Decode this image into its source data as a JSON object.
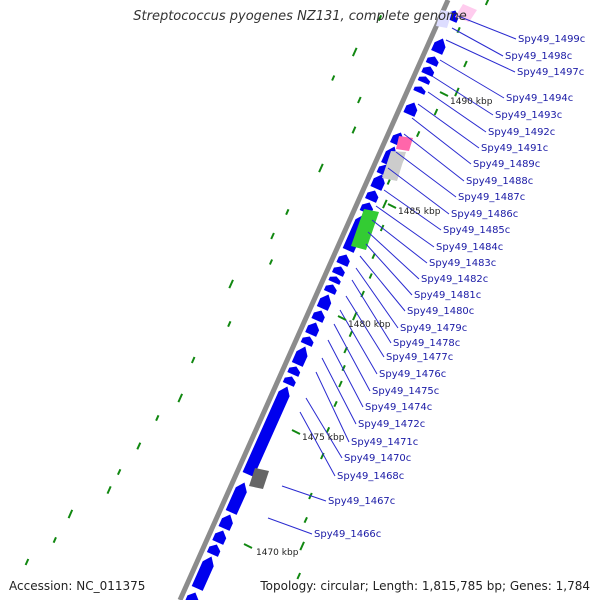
{
  "title": "Streptococcus pyogenes NZ131, complete genome",
  "footer": {
    "accession": "Accession: NC_011375",
    "stats": "Topology: circular; Length: 1,815,785 bp; Genes: 1,784"
  },
  "colors": {
    "backbone": "#8c8c8c",
    "cds": "#0000ee",
    "label": "#1a1aa6",
    "leader_line": "#2a2ad0",
    "gc_tick": "#118811",
    "rna_green": "#33cc33",
    "gray_feature": "#cccccc",
    "dark_feature": "#666666",
    "pink_feature": "#ff66aa",
    "light_pink_feature": "#ffccee"
  },
  "kbp_marks": [
    "1490 kbp",
    "1485 kbp",
    "1480 kbp",
    "1475 kbp",
    "1470 kbp"
  ],
  "genes": [
    "Spy49_1499c",
    "Spy49_1498c",
    "Spy49_1497c",
    "Spy49_1494c",
    "Spy49_1493c",
    "Spy49_1492c",
    "Spy49_1491c",
    "Spy49_1489c",
    "Spy49_1488c",
    "Spy49_1487c",
    "Spy49_1486c",
    "Spy49_1485c",
    "Spy49_1484c",
    "Spy49_1483c",
    "Spy49_1482c",
    "Spy49_1481c",
    "Spy49_1480c",
    "Spy49_1479c",
    "Spy49_1478c",
    "Spy49_1477c",
    "Spy49_1476c",
    "Spy49_1475c",
    "Spy49_1474c",
    "Spy49_1472c",
    "Spy49_1471c",
    "Spy49_1470c",
    "Spy49_1468c",
    "Spy49_1467c",
    "Spy49_1466c"
  ]
}
